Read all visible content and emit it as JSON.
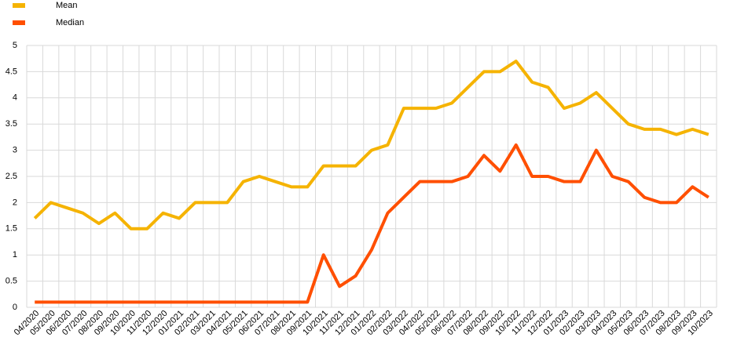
{
  "chart_data": {
    "type": "line",
    "categories": [
      "04/2020",
      "05/2020",
      "06/2020",
      "07/2020",
      "08/2020",
      "09/2020",
      "10/2020",
      "11/2020",
      "12/2020",
      "01/2021",
      "02/2021",
      "03/2021",
      "04/2021",
      "05/2021",
      "06/2021",
      "07/2021",
      "08/2021",
      "09/2021",
      "10/2021",
      "11/2021",
      "12/2021",
      "01/2022",
      "02/2022",
      "03/2022",
      "04/2022",
      "05/2022",
      "06/2022",
      "07/2022",
      "08/2022",
      "09/2022",
      "10/2022",
      "11/2022",
      "12/2022",
      "01/2023",
      "02/2023",
      "03/2023",
      "04/2023",
      "05/2023",
      "06/2023",
      "07/2023",
      "08/2023",
      "09/2023",
      "10/2023"
    ],
    "series": [
      {
        "name": "Mean",
        "color": "#f5b301",
        "values": [
          1.7,
          2.0,
          1.9,
          1.8,
          1.6,
          1.8,
          1.5,
          1.5,
          1.8,
          1.7,
          2.0,
          2.0,
          2.0,
          2.4,
          2.5,
          2.4,
          2.3,
          2.3,
          2.7,
          2.7,
          2.7,
          3.0,
          3.1,
          3.8,
          3.8,
          3.8,
          3.9,
          4.2,
          4.5,
          4.5,
          4.7,
          4.3,
          4.2,
          3.8,
          3.9,
          4.1,
          3.8,
          3.5,
          3.4,
          3.4,
          3.3,
          3.4,
          3.3
        ]
      },
      {
        "name": "Median",
        "color": "#ff4f00",
        "values": [
          0.1,
          0.1,
          0.1,
          0.1,
          0.1,
          0.1,
          0.1,
          0.1,
          0.1,
          0.1,
          0.1,
          0.1,
          0.1,
          0.1,
          0.1,
          0.1,
          0.1,
          0.1,
          1.0,
          0.4,
          0.6,
          1.1,
          1.8,
          2.1,
          2.4,
          2.4,
          2.4,
          2.5,
          2.9,
          2.6,
          3.1,
          2.5,
          2.5,
          2.4,
          2.4,
          3.0,
          2.5,
          2.4,
          2.1,
          2.0,
          2.0,
          2.3,
          2.1
        ]
      }
    ],
    "ylim": [
      0,
      5
    ],
    "yticks": [
      0,
      0.5,
      1,
      1.5,
      2,
      2.5,
      3,
      3.5,
      4,
      4.5,
      5
    ],
    "grid": true,
    "legend": "top-left"
  }
}
